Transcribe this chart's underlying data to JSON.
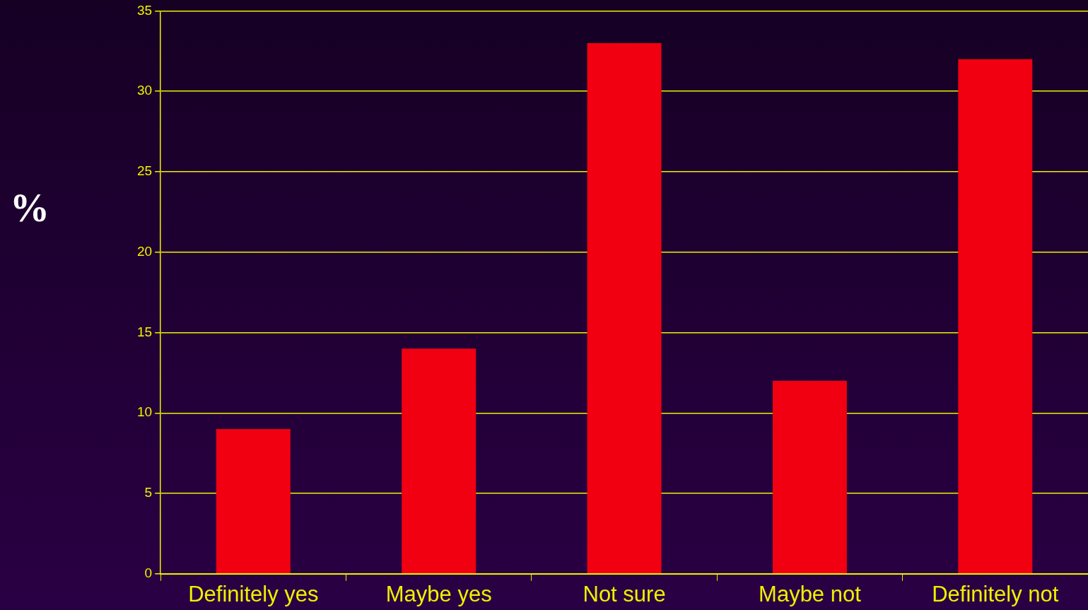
{
  "chart_data": {
    "type": "bar",
    "ylabel": "%",
    "categories": [
      "Definitely yes",
      "Maybe yes",
      "Not sure",
      "Maybe not",
      "Definitely not"
    ],
    "values": [
      9,
      14,
      33,
      12,
      32
    ],
    "color": "#f00010",
    "ylim": [
      0,
      35
    ],
    "yticks": [
      0,
      5,
      10,
      15,
      20,
      25,
      30,
      35
    ],
    "grid": "y",
    "legend": false
  }
}
